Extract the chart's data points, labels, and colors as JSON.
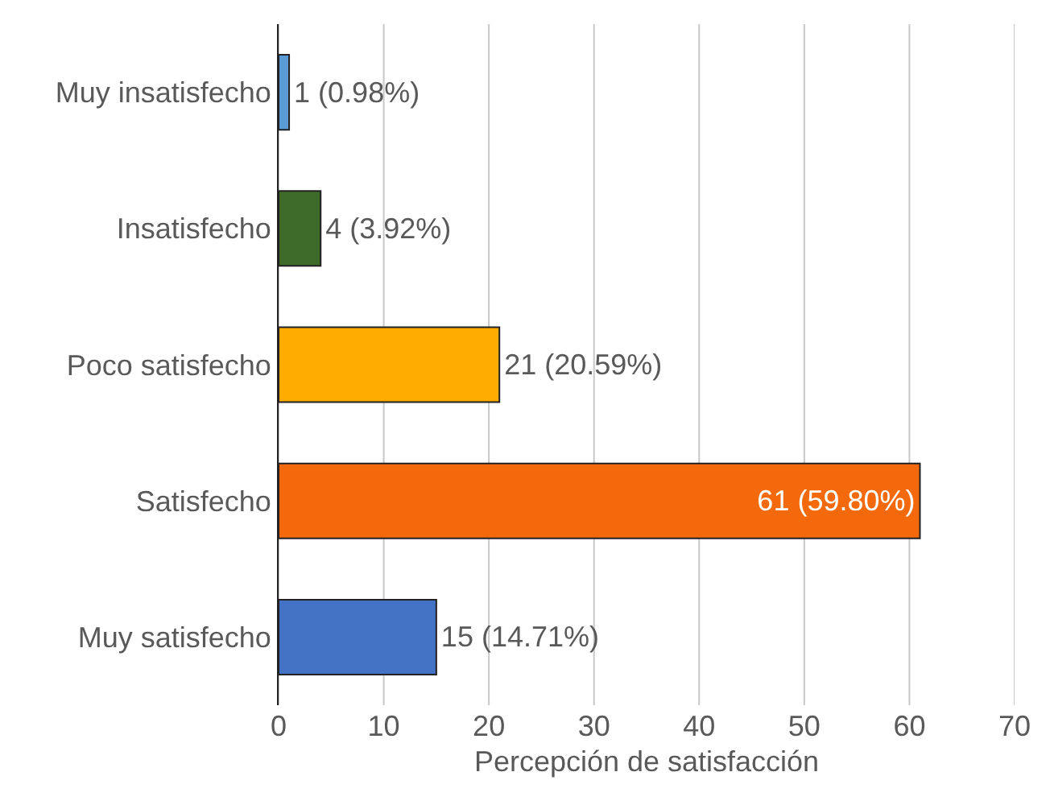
{
  "chart_data": {
    "type": "bar",
    "orientation": "horizontal",
    "xlabel": "Percepción de satisfacción",
    "categories": [
      "Muy insatisfecho",
      "Insatisfecho",
      "Poco satisfecho",
      "Satisfecho",
      "Muy satisfecho"
    ],
    "values": [
      1,
      4,
      21,
      61,
      15
    ],
    "value_labels": [
      "1 (0.98%)",
      "4 (3.92%)",
      "21 (20.59%)",
      "61 (59.80%)",
      "15 (14.71%)"
    ],
    "colors": [
      "#5b9bd5",
      "#3f6b2a",
      "#ffab00",
      "#f4690c",
      "#4472c4"
    ],
    "xlim": [
      0,
      70
    ],
    "xticks": [
      0,
      10,
      20,
      30,
      40,
      50,
      60,
      70
    ],
    "grid": "x"
  }
}
